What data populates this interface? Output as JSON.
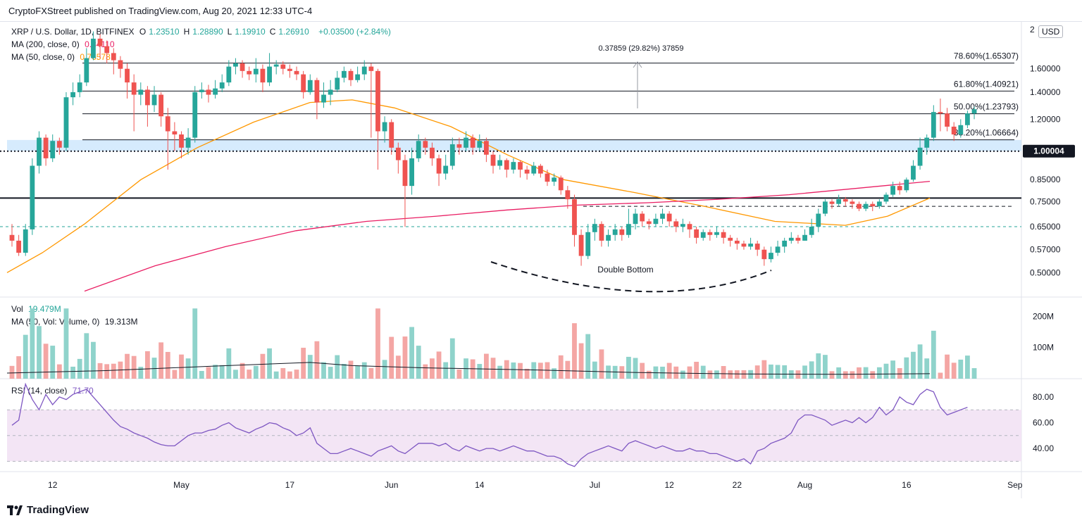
{
  "header": {
    "published": "CryptoFXStreet published on TradingView.com, Aug 20, 2021 12:33 UTC-4"
  },
  "legend": {
    "symbol": "XRP / U.S. Dollar, 1D, BITFINEX",
    "ohlc": [
      {
        "k": "O",
        "v": "1.23510"
      },
      {
        "k": "H",
        "v": "1.28890"
      },
      {
        "k": "L",
        "v": "1.19910"
      },
      {
        "k": "C",
        "v": "1.26910"
      }
    ],
    "change": "+0.03500 (+2.84%)",
    "ma200_label": "MA (200, close, 0)",
    "ma200_value": "0.84110",
    "ma50_label": "MA (50, close, 0)",
    "ma50_value": "0.76578",
    "vol_label": "Vol",
    "vol_value": "19.479M",
    "vol_ma_label": "MA (50, Vol: Volume, 0)",
    "vol_ma_value": "19.313M",
    "rsi_label": "RSI (14, close)",
    "rsi_value": "71.70"
  },
  "currency_button": "USD",
  "footer": {
    "brand": "TradingView"
  },
  "colors": {
    "up": "#26a69a",
    "down": "#ef5350",
    "ma50": "#ff9800",
    "ma200": "#e91e63",
    "rsi": "#7e57c2",
    "rsi_band": "#f3e5f5"
  },
  "annotations": {
    "measure": "0.37859 (29.82%) 37859",
    "pattern": "Double Bottom"
  },
  "chart_data": {
    "type": "candlestick",
    "y_scale": "log",
    "price_ticks": [
      "0.50000",
      "0.57000",
      "0.65000",
      "0.75000",
      "0.85000",
      "1.00004",
      "1.20000",
      "1.40000",
      "1.60000",
      "2"
    ],
    "price_tick_values": [
      0.5,
      0.57,
      0.65,
      0.75,
      0.85,
      1.00004,
      1.2,
      1.4,
      1.6,
      2.0
    ],
    "x_ticks": [
      {
        "label": "12",
        "date": "2021-04-12"
      },
      {
        "label": "May",
        "date": "2021-05-01"
      },
      {
        "label": "17",
        "date": "2021-05-17"
      },
      {
        "label": "Jun",
        "date": "2021-06-01"
      },
      {
        "label": "14",
        "date": "2021-06-14"
      },
      {
        "label": "Jul",
        "date": "2021-07-01"
      },
      {
        "label": "12",
        "date": "2021-07-12"
      },
      {
        "label": "22",
        "date": "2021-07-22"
      },
      {
        "label": "Aug",
        "date": "2021-08-01"
      },
      {
        "label": "16",
        "date": "2021-08-16"
      },
      {
        "label": "Sep",
        "date": "2021-09-01"
      }
    ],
    "fib_levels": [
      {
        "label": "78.60%(1.65307)",
        "price": 1.65307
      },
      {
        "label": "61.80%(1.40921)",
        "price": 1.40921
      },
      {
        "label": "50.00%(1.23793)",
        "price": 1.23793
      },
      {
        "label": "38.20%(1.06664)",
        "price": 1.06664
      }
    ],
    "key_level": 1.00004,
    "support_line": 0.765,
    "dashed_level_1": 0.73,
    "dashed_level_2": 0.65,
    "first_date": "2021-04-06",
    "candles": [
      [
        0.62,
        0.6,
        0.66,
        0.58
      ],
      [
        0.6,
        0.56,
        0.62,
        0.55
      ],
      [
        0.56,
        0.64,
        0.66,
        0.55
      ],
      [
        0.64,
        0.92,
        0.96,
        0.62
      ],
      [
        0.92,
        1.08,
        1.12,
        0.88
      ],
      [
        1.08,
        0.96,
        1.1,
        0.92
      ],
      [
        0.96,
        1.06,
        1.1,
        0.94
      ],
      [
        1.06,
        1.02,
        1.08,
        0.98
      ],
      [
        1.02,
        1.36,
        1.4,
        1.0
      ],
      [
        1.36,
        1.4,
        1.48,
        1.3
      ],
      [
        1.4,
        1.48,
        1.55,
        1.36
      ],
      [
        1.48,
        1.7,
        1.8,
        1.45
      ],
      [
        1.7,
        1.9,
        1.98,
        1.68
      ],
      [
        1.9,
        1.82,
        1.95,
        1.7
      ],
      [
        1.82,
        1.75,
        1.88,
        1.65
      ],
      [
        1.75,
        1.68,
        1.8,
        1.55
      ],
      [
        1.68,
        1.6,
        1.72,
        1.52
      ],
      [
        1.6,
        1.48,
        1.65,
        1.35
      ],
      [
        1.48,
        1.38,
        1.55,
        1.12
      ],
      [
        1.38,
        1.42,
        1.48,
        1.3
      ],
      [
        1.42,
        1.3,
        1.45,
        1.15
      ],
      [
        1.3,
        1.38,
        1.45,
        1.25
      ],
      [
        1.38,
        1.22,
        1.4,
        1.15
      ],
      [
        1.22,
        1.12,
        1.28,
        0.9
      ],
      [
        1.12,
        1.1,
        1.18,
        1.0
      ],
      [
        1.1,
        1.02,
        1.12,
        0.96
      ],
      [
        1.02,
        1.08,
        1.14,
        0.98
      ],
      [
        1.08,
        1.4,
        1.45,
        1.05
      ],
      [
        1.4,
        1.42,
        1.48,
        1.35
      ],
      [
        1.42,
        1.38,
        1.46,
        1.32
      ],
      [
        1.38,
        1.43,
        1.5,
        1.35
      ],
      [
        1.43,
        1.48,
        1.55,
        1.4
      ],
      [
        1.48,
        1.62,
        1.68,
        1.45
      ],
      [
        1.62,
        1.65,
        1.7,
        1.55
      ],
      [
        1.65,
        1.58,
        1.68,
        1.52
      ],
      [
        1.58,
        1.55,
        1.62,
        1.5
      ],
      [
        1.55,
        1.6,
        1.7,
        1.48
      ],
      [
        1.6,
        1.48,
        1.64,
        1.4
      ],
      [
        1.48,
        1.62,
        1.75,
        1.45
      ],
      [
        1.62,
        1.64,
        1.68,
        1.55
      ],
      [
        1.64,
        1.6,
        1.67,
        1.55
      ],
      [
        1.6,
        1.58,
        1.64,
        1.52
      ],
      [
        1.58,
        1.55,
        1.62,
        1.5
      ],
      [
        1.55,
        1.4,
        1.58,
        1.35
      ],
      [
        1.4,
        1.5,
        1.55,
        1.38
      ],
      [
        1.5,
        1.32,
        1.52,
        1.2
      ],
      [
        1.32,
        1.38,
        1.48,
        1.28
      ],
      [
        1.38,
        1.42,
        1.5,
        1.3
      ],
      [
        1.42,
        1.52,
        1.58,
        1.4
      ],
      [
        1.52,
        1.58,
        1.62,
        1.48
      ],
      [
        1.58,
        1.5,
        1.6,
        1.45
      ],
      [
        1.5,
        1.55,
        1.62,
        1.48
      ],
      [
        1.55,
        1.62,
        1.68,
        1.5
      ],
      [
        1.62,
        1.58,
        1.65,
        1.08
      ],
      [
        1.58,
        1.12,
        1.6,
        0.9
      ],
      [
        1.12,
        1.18,
        1.22,
        1.05
      ],
      [
        1.18,
        1.02,
        1.2,
        0.98
      ],
      [
        1.02,
        0.95,
        1.05,
        0.88
      ],
      [
        0.95,
        0.82,
        0.98,
        0.65
      ],
      [
        0.82,
        0.96,
        1.02,
        0.78
      ],
      [
        0.96,
        1.06,
        1.1,
        0.94
      ],
      [
        1.06,
        1.02,
        1.08,
        0.98
      ],
      [
        1.02,
        0.96,
        1.05,
        0.92
      ],
      [
        0.96,
        0.88,
        0.98,
        0.82
      ],
      [
        0.88,
        0.92,
        0.98,
        0.85
      ],
      [
        0.92,
        1.04,
        1.08,
        0.9
      ],
      [
        1.04,
        1.02,
        1.08,
        0.98
      ],
      [
        1.02,
        1.08,
        1.12,
        1.0
      ],
      [
        1.08,
        1.02,
        1.1,
        0.98
      ],
      [
        1.02,
        1.06,
        1.1,
        1.0
      ],
      [
        1.06,
        0.98,
        1.08,
        0.94
      ],
      [
        0.98,
        0.92,
        1.0,
        0.88
      ],
      [
        0.92,
        0.95,
        0.98,
        0.9
      ],
      [
        0.95,
        0.9,
        0.96,
        0.86
      ],
      [
        0.9,
        0.94,
        0.96,
        0.88
      ],
      [
        0.94,
        0.9,
        0.95,
        0.86
      ],
      [
        0.9,
        0.88,
        0.92,
        0.85
      ],
      [
        0.88,
        0.92,
        0.94,
        0.87
      ],
      [
        0.92,
        0.88,
        0.93,
        0.86
      ],
      [
        0.88,
        0.84,
        0.9,
        0.82
      ],
      [
        0.84,
        0.86,
        0.88,
        0.82
      ],
      [
        0.86,
        0.8,
        0.87,
        0.78
      ],
      [
        0.8,
        0.76,
        0.82,
        0.72
      ],
      [
        0.76,
        0.62,
        0.78,
        0.58
      ],
      [
        0.62,
        0.55,
        0.64,
        0.52
      ],
      [
        0.55,
        0.63,
        0.66,
        0.54
      ],
      [
        0.63,
        0.66,
        0.68,
        0.6
      ],
      [
        0.66,
        0.6,
        0.67,
        0.58
      ],
      [
        0.6,
        0.62,
        0.64,
        0.58
      ],
      [
        0.62,
        0.64,
        0.66,
        0.6
      ],
      [
        0.64,
        0.62,
        0.65,
        0.6
      ],
      [
        0.62,
        0.66,
        0.72,
        0.61
      ],
      [
        0.66,
        0.7,
        0.72,
        0.64
      ],
      [
        0.7,
        0.67,
        0.71,
        0.65
      ],
      [
        0.67,
        0.66,
        0.68,
        0.64
      ],
      [
        0.66,
        0.68,
        0.7,
        0.65
      ],
      [
        0.68,
        0.7,
        0.72,
        0.66
      ],
      [
        0.7,
        0.67,
        0.71,
        0.65
      ],
      [
        0.67,
        0.65,
        0.68,
        0.63
      ],
      [
        0.65,
        0.66,
        0.68,
        0.63
      ],
      [
        0.66,
        0.64,
        0.67,
        0.61
      ],
      [
        0.64,
        0.61,
        0.65,
        0.59
      ],
      [
        0.61,
        0.63,
        0.64,
        0.6
      ],
      [
        0.63,
        0.62,
        0.64,
        0.6
      ],
      [
        0.62,
        0.63,
        0.65,
        0.61
      ],
      [
        0.63,
        0.61,
        0.64,
        0.59
      ],
      [
        0.61,
        0.6,
        0.62,
        0.58
      ],
      [
        0.6,
        0.59,
        0.61,
        0.57
      ],
      [
        0.59,
        0.58,
        0.6,
        0.57
      ],
      [
        0.58,
        0.59,
        0.61,
        0.57
      ],
      [
        0.59,
        0.57,
        0.6,
        0.55
      ],
      [
        0.57,
        0.54,
        0.58,
        0.52
      ],
      [
        0.54,
        0.56,
        0.58,
        0.53
      ],
      [
        0.56,
        0.58,
        0.6,
        0.55
      ],
      [
        0.58,
        0.6,
        0.61,
        0.56
      ],
      [
        0.6,
        0.61,
        0.63,
        0.59
      ],
      [
        0.61,
        0.6,
        0.62,
        0.59
      ],
      [
        0.6,
        0.62,
        0.64,
        0.6
      ],
      [
        0.62,
        0.65,
        0.68,
        0.61
      ],
      [
        0.65,
        0.7,
        0.72,
        0.63
      ],
      [
        0.7,
        0.75,
        0.76,
        0.69
      ],
      [
        0.75,
        0.74,
        0.76,
        0.72
      ],
      [
        0.74,
        0.76,
        0.78,
        0.73
      ],
      [
        0.76,
        0.75,
        0.77,
        0.73
      ],
      [
        0.75,
        0.74,
        0.76,
        0.72
      ],
      [
        0.74,
        0.72,
        0.75,
        0.71
      ],
      [
        0.72,
        0.74,
        0.75,
        0.71
      ],
      [
        0.74,
        0.73,
        0.75,
        0.71
      ],
      [
        0.73,
        0.75,
        0.76,
        0.72
      ],
      [
        0.75,
        0.78,
        0.79,
        0.74
      ],
      [
        0.78,
        0.82,
        0.84,
        0.77
      ],
      [
        0.82,
        0.8,
        0.84,
        0.78
      ],
      [
        0.8,
        0.85,
        0.86,
        0.79
      ],
      [
        0.85,
        0.92,
        0.95,
        0.84
      ],
      [
        0.92,
        1.02,
        1.08,
        0.9
      ],
      [
        1.02,
        1.08,
        1.1,
        0.98
      ],
      [
        1.08,
        1.25,
        1.3,
        1.06
      ],
      [
        1.25,
        1.24,
        1.35,
        1.12
      ],
      [
        1.24,
        1.15,
        1.28,
        1.12
      ],
      [
        1.15,
        1.1,
        1.18,
        1.06
      ],
      [
        1.1,
        1.16,
        1.2,
        1.08
      ],
      [
        1.16,
        1.24,
        1.26,
        1.14
      ],
      [
        1.24,
        1.27,
        1.29,
        1.2
      ]
    ]
  }
}
